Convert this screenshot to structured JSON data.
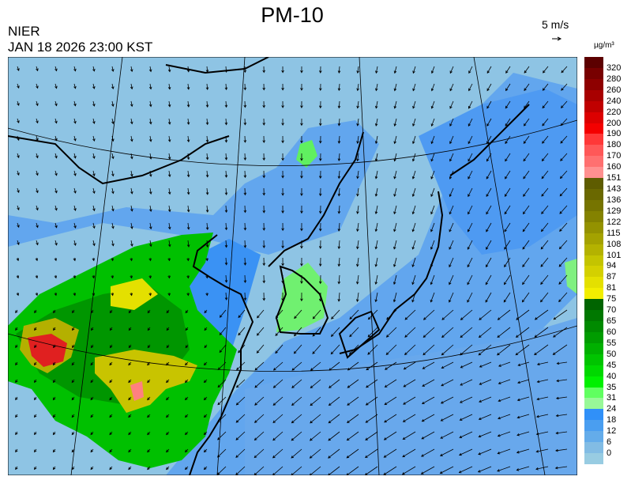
{
  "title": "PM-10",
  "agency": "NIER",
  "timestamp": "JAN 18 2026 23:00 KST",
  "wind_scale": {
    "label": "5 m/s",
    "icon": "arrow-right-icon"
  },
  "legend": {
    "unit": "µg/m³",
    "labels": [
      "320",
      "280",
      "260",
      "240",
      "220",
      "200",
      "190",
      "180",
      "170",
      "160",
      "151",
      "143",
      "136",
      "129",
      "122",
      "115",
      "108",
      "101",
      "94",
      "87",
      "81",
      "75",
      "70",
      "65",
      "60",
      "55",
      "50",
      "45",
      "40",
      "35",
      "31",
      "24",
      "18",
      "12",
      "6",
      "0"
    ],
    "colors": [
      "#5c0000",
      "#780000",
      "#8e0000",
      "#a80000",
      "#c00000",
      "#dc0000",
      "#f40000",
      "#ff3838",
      "#ff5858",
      "#ff7070",
      "#ff9090",
      "#5e5c00",
      "#6a6800",
      "#767400",
      "#848200",
      "#949200",
      "#a4a200",
      "#b4b200",
      "#c4c400",
      "#d4d000",
      "#e4e000",
      "#f2ee00",
      "#006400",
      "#007800",
      "#008a00",
      "#009c00",
      "#00b000",
      "#00c400",
      "#00d800",
      "#00f000",
      "#60ff60",
      "#98f898",
      "#3090f8",
      "#4a9ef0",
      "#64acea",
      "#82bce4",
      "#98cce2"
    ]
  }
}
